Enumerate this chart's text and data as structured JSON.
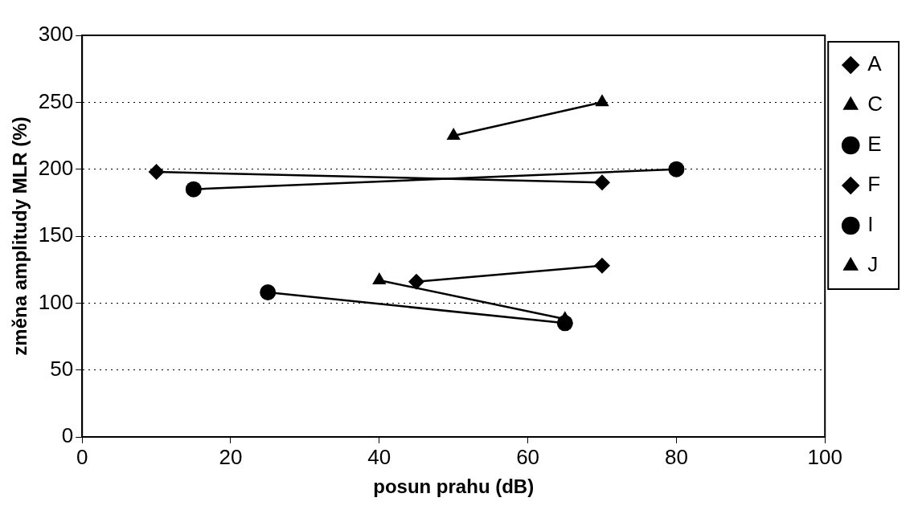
{
  "chart_data": {
    "type": "line",
    "xlabel": "posun prahu (dB)",
    "ylabel": "změna amplitudy MLR (%)",
    "xlim": [
      0,
      100
    ],
    "xticks": [
      0,
      20,
      40,
      60,
      80,
      100
    ],
    "ylim": [
      0,
      300
    ],
    "yticks": [
      0,
      50,
      100,
      150,
      200,
      250,
      300
    ],
    "grid": "y",
    "legend": "right",
    "series": [
      {
        "name": "A",
        "color": "#000000",
        "marker": "diamond",
        "x": [
          10,
          70
        ],
        "values": [
          198,
          190
        ]
      },
      {
        "name": "C",
        "color": "#000000",
        "marker": "triangle",
        "x": [
          50,
          70
        ],
        "values": [
          225,
          250
        ]
      },
      {
        "name": "E",
        "color": "#000000",
        "marker": "circle",
        "x": [
          15,
          80
        ],
        "values": [
          185,
          200
        ]
      },
      {
        "name": "F",
        "color": "#000000",
        "marker": "diamond",
        "x": [
          45,
          70
        ],
        "values": [
          116,
          128
        ]
      },
      {
        "name": "I",
        "color": "#000000",
        "marker": "circle",
        "x": [
          25,
          65
        ],
        "values": [
          108,
          85
        ]
      },
      {
        "name": "J",
        "color": "#000000",
        "marker": "triangle",
        "x": [
          40,
          65
        ],
        "values": [
          117,
          88
        ]
      }
    ]
  }
}
